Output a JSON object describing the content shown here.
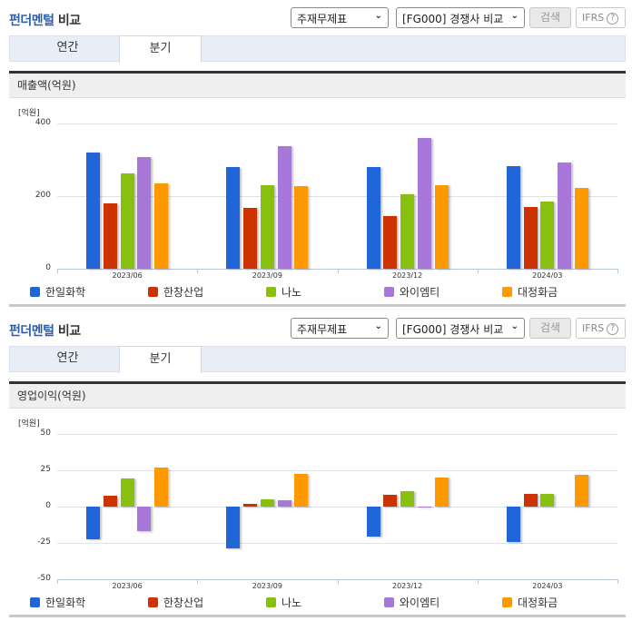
{
  "sections": [
    {
      "title_accent": "펀더멘털",
      "title_rest": " 비교",
      "select_statement": "주재무제표",
      "select_group": "[FG000] 경쟁사 비교",
      "search_label": "검색",
      "ifrs_label": "IFRS",
      "help_icon": "?",
      "tabs": [
        {
          "label": "연간",
          "active": false
        },
        {
          "label": "분기",
          "active": true
        }
      ],
      "header": "매출액(억원)"
    },
    {
      "title_accent": "펀더멘털",
      "title_rest": " 비교",
      "select_statement": "주재무제표",
      "select_group": "[FG000] 경쟁사 비교",
      "search_label": "검색",
      "ifrs_label": "IFRS",
      "help_icon": "?",
      "tabs": [
        {
          "label": "연간",
          "active": false
        },
        {
          "label": "분기",
          "active": true
        }
      ],
      "header": "영업이익(억원)"
    }
  ],
  "chevron_icon": "❯",
  "chart_data": [
    {
      "type": "bar",
      "title": "매출액(억원)",
      "ylabel": "[억원]",
      "xlabel": "",
      "categories": [
        "2023/06",
        "2023/09",
        "2023/12",
        "2024/03"
      ],
      "ylim": [
        0,
        400
      ],
      "yticks": [
        0,
        200,
        400
      ],
      "grid": true,
      "legend_position": "bottom",
      "series": [
        {
          "name": "한일화학",
          "color": "#2166d9",
          "values": [
            319,
            279,
            281,
            283
          ]
        },
        {
          "name": "한창산업",
          "color": "#cc3300",
          "values": [
            179,
            168,
            144,
            171
          ]
        },
        {
          "name": "나노",
          "color": "#88c010",
          "values": [
            263,
            231,
            205,
            185
          ]
        },
        {
          "name": "와이엠티",
          "color": "#a778d9",
          "values": [
            308,
            337,
            360,
            293
          ]
        },
        {
          "name": "대정화금",
          "color": "#ff9900",
          "values": [
            236,
            228,
            231,
            223
          ]
        }
      ]
    },
    {
      "type": "bar",
      "title": "영업이익(억원)",
      "ylabel": "[억원]",
      "xlabel": "",
      "categories": [
        "2023/06",
        "2023/09",
        "2023/12",
        "2024/03"
      ],
      "ylim": [
        -50,
        50
      ],
      "yticks": [
        -50,
        -25,
        0,
        25,
        50
      ],
      "grid": true,
      "legend_position": "bottom",
      "series": [
        {
          "name": "한일화학",
          "color": "#2166d9",
          "values": [
            -22.5,
            -28.6,
            -20.4,
            -24.2
          ]
        },
        {
          "name": "한창산업",
          "color": "#cc3300",
          "values": [
            7.7,
            2.1,
            7.9,
            8.9
          ]
        },
        {
          "name": "나노",
          "color": "#88c010",
          "values": [
            19.1,
            5.2,
            10.8,
            8.5
          ]
        },
        {
          "name": "와이엠티",
          "color": "#a778d9",
          "values": [
            -16.7,
            4.2,
            -0.8,
            0
          ]
        },
        {
          "name": "대정화금",
          "color": "#ff9900",
          "values": [
            26.6,
            22.3,
            20.2,
            21.6
          ]
        }
      ]
    }
  ]
}
